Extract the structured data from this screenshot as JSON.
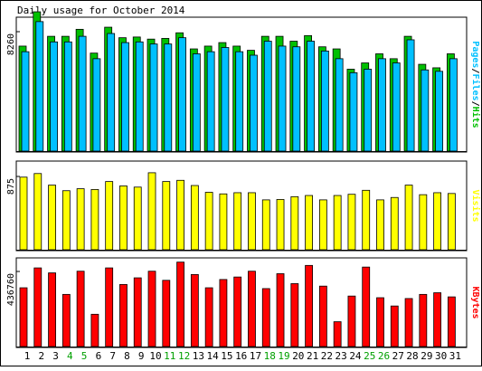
{
  "window": {
    "title": "Daily usage for October 2014"
  },
  "colors": {
    "hits": "#00c000",
    "files": "#00c0ff",
    "pages": "#00c0ff",
    "visits": "#ffff00",
    "kbytes": "#ff0000",
    "weekend_label": "#00a000",
    "weekday_label": "#000000",
    "panel_bg": "#d2d2d2",
    "frame": "#000000"
  },
  "chart_data": [
    {
      "type": "bar",
      "title": "Daily usage for October 2014",
      "ylabel_segments": [
        {
          "text": "Pages",
          "color": "#00c0ff"
        },
        {
          "text": "/",
          "color": "#000000"
        },
        {
          "text": "Files",
          "color": "#00c0ff"
        },
        {
          "text": "/",
          "color": "#000000"
        },
        {
          "text": "Hits",
          "color": "#00c000"
        }
      ],
      "ytick_label": "8260",
      "ylim": [
        0,
        9500
      ],
      "categories": [
        "1",
        "2",
        "3",
        "4",
        "5",
        "6",
        "7",
        "8",
        "9",
        "10",
        "11",
        "12",
        "13",
        "14",
        "15",
        "16",
        "17",
        "18",
        "19",
        "20",
        "21",
        "22",
        "23",
        "24",
        "25",
        "26",
        "27",
        "28",
        "29",
        "30",
        "31"
      ],
      "series": [
        {
          "name": "Hits",
          "values": [
            7500,
            9950,
            8200,
            8200,
            8700,
            7000,
            8850,
            8100,
            8150,
            8000,
            8050,
            8450,
            7300,
            7500,
            7750,
            7500,
            7200,
            8200,
            8200,
            7850,
            8250,
            7450,
            7300,
            5850,
            6300,
            6950,
            6600,
            8200,
            6200,
            5950,
            6950
          ]
        },
        {
          "name": "Files",
          "values": [
            7100,
            9250,
            7800,
            7800,
            8200,
            6600,
            8400,
            7750,
            7800,
            7650,
            7650,
            8100,
            6950,
            7100,
            7400,
            7100,
            6850,
            7850,
            7500,
            7450,
            7850,
            7150,
            6600,
            5600,
            5850,
            6600,
            6300,
            7950,
            5800,
            5700,
            6600
          ]
        }
      ]
    },
    {
      "type": "bar",
      "ylabel": "Visits",
      "ytick_label": "875",
      "ylim": [
        0,
        1100
      ],
      "categories": [
        "1",
        "2",
        "3",
        "4",
        "5",
        "6",
        "7",
        "8",
        "9",
        "10",
        "11",
        "12",
        "13",
        "14",
        "15",
        "16",
        "17",
        "18",
        "19",
        "20",
        "21",
        "22",
        "23",
        "24",
        "25",
        "26",
        "27",
        "28",
        "29",
        "30",
        "31"
      ],
      "series": [
        {
          "name": "Visits",
          "values": [
            910,
            955,
            810,
            740,
            765,
            755,
            855,
            800,
            785,
            965,
            855,
            870,
            805,
            720,
            700,
            715,
            715,
            625,
            630,
            665,
            680,
            625,
            680,
            695,
            745,
            625,
            655,
            810,
            690,
            715,
            705
          ]
        }
      ]
    },
    {
      "type": "bar",
      "ylabel": "KBytes",
      "ytick_label": "436760",
      "ylim": [
        0,
        530000
      ],
      "categories": [
        "1",
        "2",
        "3",
        "4",
        "5",
        "6",
        "7",
        "8",
        "9",
        "10",
        "11",
        "12",
        "13",
        "14",
        "15",
        "16",
        "17",
        "18",
        "19",
        "20",
        "21",
        "22",
        "23",
        "24",
        "25",
        "26",
        "27",
        "28",
        "29",
        "30",
        "31"
      ],
      "series": [
        {
          "name": "KBytes",
          "values": [
            355000,
            475000,
            445000,
            315000,
            455000,
            195000,
            475000,
            375000,
            415000,
            455000,
            400000,
            510000,
            435000,
            355000,
            405000,
            420000,
            455000,
            350000,
            440000,
            380000,
            490000,
            365000,
            150000,
            305000,
            480000,
            295000,
            245000,
            290000,
            315000,
            325000,
            300000
          ]
        }
      ]
    }
  ],
  "x_label_colors": [
    "#000000",
    "#000000",
    "#000000",
    "#00a000",
    "#00a000",
    "#000000",
    "#000000",
    "#000000",
    "#000000",
    "#000000",
    "#00a000",
    "#00a000",
    "#000000",
    "#000000",
    "#000000",
    "#000000",
    "#000000",
    "#00a000",
    "#00a000",
    "#000000",
    "#000000",
    "#000000",
    "#000000",
    "#000000",
    "#00a000",
    "#00a000",
    "#000000",
    "#000000",
    "#000000",
    "#000000",
    "#000000"
  ]
}
